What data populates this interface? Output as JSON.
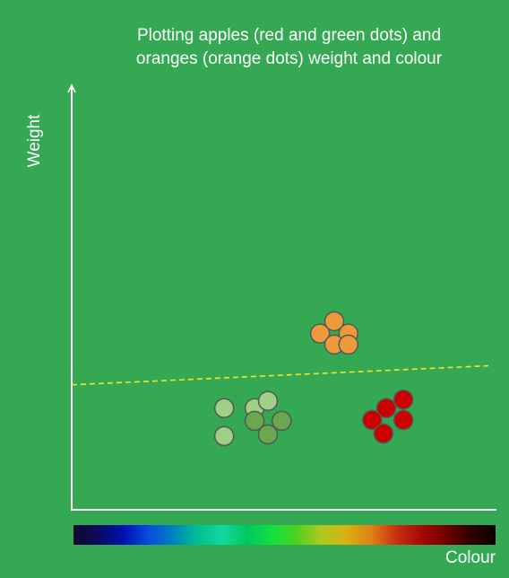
{
  "chart_data": {
    "type": "scatter",
    "title_lines": [
      "Plotting apples (red and green dots) and",
      "oranges (orange dots) weight and colour"
    ],
    "xlabel": "Colour",
    "ylabel": "Weight",
    "xlim": [
      0,
      100
    ],
    "ylim": [
      0,
      100
    ],
    "grid": false,
    "legend": "none",
    "series": [
      {
        "color": "#a2cf88",
        "points": [
          [
            36.6,
            24
          ],
          [
            43.9,
            24
          ],
          [
            47.1,
            25.7
          ],
          [
            36.6,
            17.4
          ]
        ]
      },
      {
        "color": "#6aa84f",
        "points": [
          [
            43.9,
            21
          ],
          [
            50.4,
            21
          ],
          [
            47.1,
            17.8
          ]
        ]
      },
      {
        "color": "#ee9a3c",
        "points": [
          [
            59.6,
            41.6
          ],
          [
            63,
            44.5
          ],
          [
            66.4,
            41.6
          ],
          [
            63,
            39
          ],
          [
            66.4,
            39
          ]
        ]
      },
      {
        "color": "#cc0000",
        "points": [
          [
            75.5,
            24
          ],
          [
            79.6,
            26
          ],
          [
            72.1,
            21.2
          ],
          [
            79.6,
            21.2
          ],
          [
            74.8,
            18
          ]
        ]
      }
    ],
    "divider_line": {
      "color": "#f7e22a",
      "style": "dashed",
      "from": [
        0,
        29.5
      ],
      "to": [
        100,
        34
      ]
    },
    "colour_bar": {
      "stops": [
        "#100a2e",
        "#0a0a5e",
        "#0010b0",
        "#0a4ae0",
        "#0080c0",
        "#00c090",
        "#10d8a0",
        "#00c860",
        "#10e040",
        "#50d020",
        "#b0c820",
        "#d8b010",
        "#e08018",
        "#c83010",
        "#a80808",
        "#700000",
        "#300000",
        "#0a0000"
      ]
    }
  },
  "colors": {
    "background": "#34a853",
    "axis": "#ffffff",
    "text": "#ffffff"
  }
}
